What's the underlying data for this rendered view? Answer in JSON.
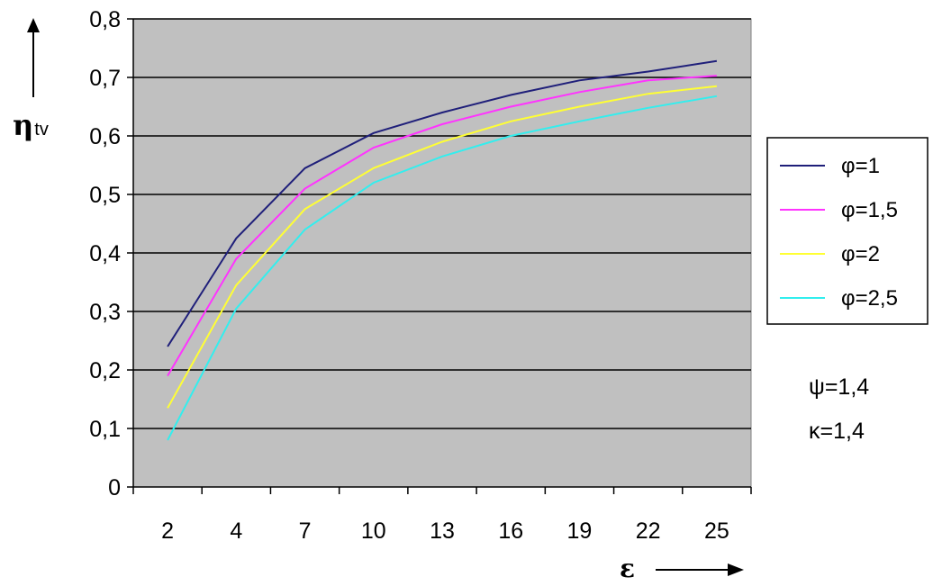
{
  "chart_data": {
    "type": "line",
    "ylabel": "η",
    "ylabel_sub": "tv",
    "xlabel": "ε",
    "categories": [
      "2",
      "4",
      "7",
      "10",
      "13",
      "16",
      "19",
      "22",
      "25"
    ],
    "ylim": [
      0,
      0.8
    ],
    "yticks": [
      "0",
      "0,1",
      "0,2",
      "0,3",
      "0,4",
      "0,5",
      "0,6",
      "0,7",
      "0,8"
    ],
    "grid": "horizontal",
    "legend_position": "right",
    "series": [
      {
        "name": "φ=1",
        "color": "#1f1f7a",
        "values": [
          0.24,
          0.425,
          0.545,
          0.605,
          0.64,
          0.67,
          0.695,
          0.71,
          0.728
        ]
      },
      {
        "name": "φ=1,5",
        "color": "#ff33ff",
        "values": [
          0.19,
          0.39,
          0.51,
          0.58,
          0.62,
          0.65,
          0.675,
          0.695,
          0.703
        ]
      },
      {
        "name": "φ=2",
        "color": "#ffff33",
        "values": [
          0.135,
          0.345,
          0.475,
          0.545,
          0.59,
          0.625,
          0.65,
          0.672,
          0.685
        ]
      },
      {
        "name": "φ=2,5",
        "color": "#33eeee",
        "values": [
          0.08,
          0.305,
          0.44,
          0.52,
          0.565,
          0.6,
          0.625,
          0.648,
          0.668
        ]
      }
    ],
    "annotations": [
      "ψ=1,4",
      "κ=1,4"
    ]
  },
  "colors": {
    "plot_background": "#c0c0c0",
    "grid": "#000000",
    "legend_background": "#ffffff"
  }
}
